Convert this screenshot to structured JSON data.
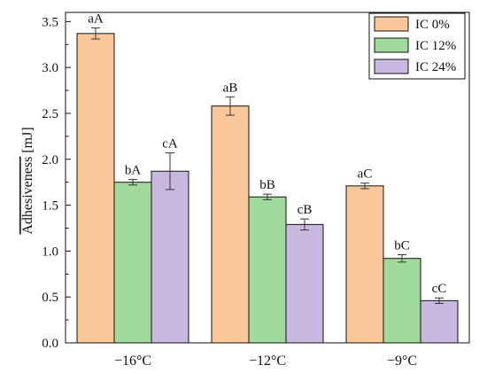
{
  "chart_data": {
    "type": "bar",
    "categories": [
      "−16°C",
      "−12°C",
      "−9°C"
    ],
    "series": [
      {
        "name": "IC 0%",
        "color": "#f8c79a",
        "values": [
          3.37,
          2.58,
          1.71
        ],
        "errors": [
          0.06,
          0.1,
          0.03
        ],
        "labels": [
          "aA",
          "aB",
          "aC"
        ]
      },
      {
        "name": "IC 12%",
        "color": "#9fd99b",
        "values": [
          1.75,
          1.59,
          0.92
        ],
        "errors": [
          0.03,
          0.03,
          0.04
        ],
        "labels": [
          "bA",
          "bB",
          "bC"
        ]
      },
      {
        "name": "IC 24%",
        "color": "#c8b8df",
        "values": [
          1.87,
          1.29,
          0.46
        ],
        "errors": [
          0.2,
          0.06,
          0.03
        ],
        "labels": [
          "cA",
          "cB",
          "cC"
        ]
      }
    ],
    "ylabel_main": "Adhesiveness",
    "ylabel_unit": " [mJ]",
    "ylim": [
      0,
      3.6
    ],
    "yticks": [
      0.0,
      0.5,
      1.0,
      1.5,
      2.0,
      2.5,
      3.0,
      3.5
    ],
    "legend_position": "top-right",
    "grid": false
  }
}
